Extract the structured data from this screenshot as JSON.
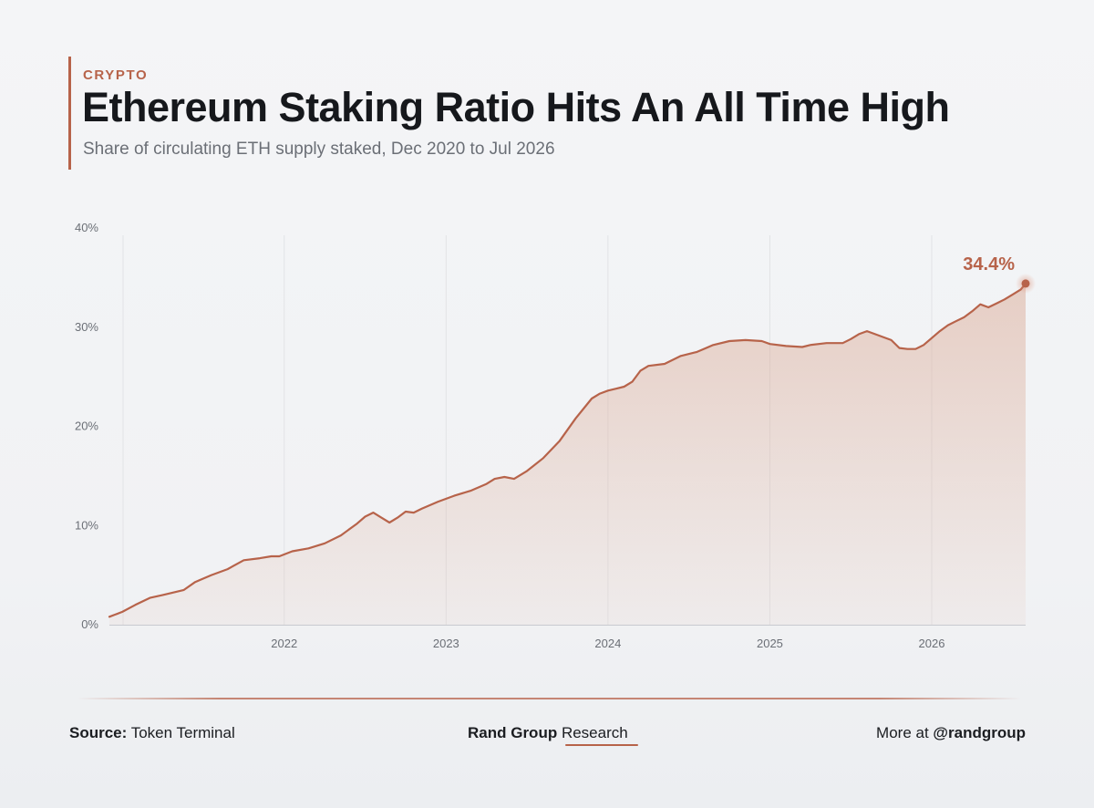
{
  "header": {
    "kicker": "CRYPTO",
    "title": "Ethereum Staking Ratio Hits An All Time High",
    "subtitle": "Share of circulating ETH supply staked, Dec 2020 to Jul 2026"
  },
  "chart_data": {
    "type": "area",
    "title": "Ethereum Staking Ratio Hits An All Time High",
    "subtitle": "Share of circulating ETH supply staked, Dec 2020 to Jul 2026",
    "xlabel": "",
    "ylabel": "",
    "x_unit": "year (decimal)",
    "y_unit": "%",
    "xlim": [
      2020.92,
      2026.58
    ],
    "ylim": [
      0,
      40
    ],
    "y_ticks": [
      0,
      10,
      20,
      30,
      40
    ],
    "y_tick_labels": [
      "0%",
      "10%",
      "20%",
      "30%",
      "40%"
    ],
    "x_ticks": [
      2022,
      2023,
      2024,
      2025,
      2026
    ],
    "x_tick_labels": [
      "2022",
      "2023",
      "2024",
      "2025",
      "2026"
    ],
    "grid": {
      "vertical": true,
      "horizontal": false
    },
    "legend": "none",
    "series": [
      {
        "values": [
          [
            2020.92,
            0.8
          ],
          [
            2021.0,
            1.3
          ],
          [
            2021.08,
            2.0
          ],
          [
            2021.17,
            2.7
          ],
          [
            2021.25,
            3.0
          ],
          [
            2021.33,
            3.3
          ],
          [
            2021.38,
            3.5
          ],
          [
            2021.45,
            4.3
          ],
          [
            2021.55,
            5.0
          ],
          [
            2021.65,
            5.6
          ],
          [
            2021.75,
            6.5
          ],
          [
            2021.85,
            6.7
          ],
          [
            2021.92,
            6.9
          ],
          [
            2021.97,
            6.9
          ],
          [
            2022.05,
            7.4
          ],
          [
            2022.15,
            7.7
          ],
          [
            2022.25,
            8.2
          ],
          [
            2022.35,
            9.0
          ],
          [
            2022.45,
            10.2
          ],
          [
            2022.5,
            10.9
          ],
          [
            2022.55,
            11.3
          ],
          [
            2022.6,
            10.8
          ],
          [
            2022.65,
            10.3
          ],
          [
            2022.7,
            10.8
          ],
          [
            2022.75,
            11.4
          ],
          [
            2022.8,
            11.3
          ],
          [
            2022.85,
            11.7
          ],
          [
            2022.95,
            12.4
          ],
          [
            2023.05,
            13.0
          ],
          [
            2023.15,
            13.5
          ],
          [
            2023.25,
            14.2
          ],
          [
            2023.3,
            14.7
          ],
          [
            2023.36,
            14.9
          ],
          [
            2023.42,
            14.7
          ],
          [
            2023.5,
            15.5
          ],
          [
            2023.6,
            16.8
          ],
          [
            2023.7,
            18.5
          ],
          [
            2023.8,
            20.8
          ],
          [
            2023.9,
            22.8
          ],
          [
            2023.95,
            23.3
          ],
          [
            2024.0,
            23.6
          ],
          [
            2024.05,
            23.8
          ],
          [
            2024.1,
            24.0
          ],
          [
            2024.15,
            24.5
          ],
          [
            2024.2,
            25.6
          ],
          [
            2024.25,
            26.1
          ],
          [
            2024.35,
            26.3
          ],
          [
            2024.45,
            27.1
          ],
          [
            2024.55,
            27.5
          ],
          [
            2024.65,
            28.2
          ],
          [
            2024.75,
            28.6
          ],
          [
            2024.85,
            28.7
          ],
          [
            2024.95,
            28.6
          ],
          [
            2025.0,
            28.3
          ],
          [
            2025.1,
            28.1
          ],
          [
            2025.2,
            28.0
          ],
          [
            2025.25,
            28.2
          ],
          [
            2025.35,
            28.4
          ],
          [
            2025.45,
            28.4
          ],
          [
            2025.5,
            28.8
          ],
          [
            2025.55,
            29.3
          ],
          [
            2025.6,
            29.6
          ],
          [
            2025.65,
            29.3
          ],
          [
            2025.7,
            29.0
          ],
          [
            2025.75,
            28.7
          ],
          [
            2025.8,
            27.9
          ],
          [
            2025.85,
            27.8
          ],
          [
            2025.9,
            27.8
          ],
          [
            2025.95,
            28.2
          ],
          [
            2026.0,
            28.9
          ],
          [
            2026.05,
            29.6
          ],
          [
            2026.1,
            30.2
          ],
          [
            2026.15,
            30.6
          ],
          [
            2026.2,
            31.0
          ],
          [
            2026.25,
            31.6
          ],
          [
            2026.3,
            32.3
          ],
          [
            2026.35,
            32.0
          ],
          [
            2026.4,
            32.4
          ],
          [
            2026.45,
            32.8
          ],
          [
            2026.5,
            33.3
          ],
          [
            2026.55,
            33.8
          ],
          [
            2026.58,
            34.4
          ]
        ]
      }
    ],
    "annotations": [
      {
        "x": 2026.58,
        "y": 34.4,
        "text": "34.4%"
      }
    ],
    "colors": {
      "line": "#b7634a",
      "fill": "#d9a58f",
      "grid": "#e2e3e6",
      "tick_label": "#6b6f76",
      "annotation": "#b7634a"
    }
  },
  "footer": {
    "source_label": "Source:",
    "source_value": "Token Terminal",
    "brand_bold": "Rand Group",
    "brand_regular": "Research",
    "more_label": "More at",
    "handle": "@randgroup"
  }
}
